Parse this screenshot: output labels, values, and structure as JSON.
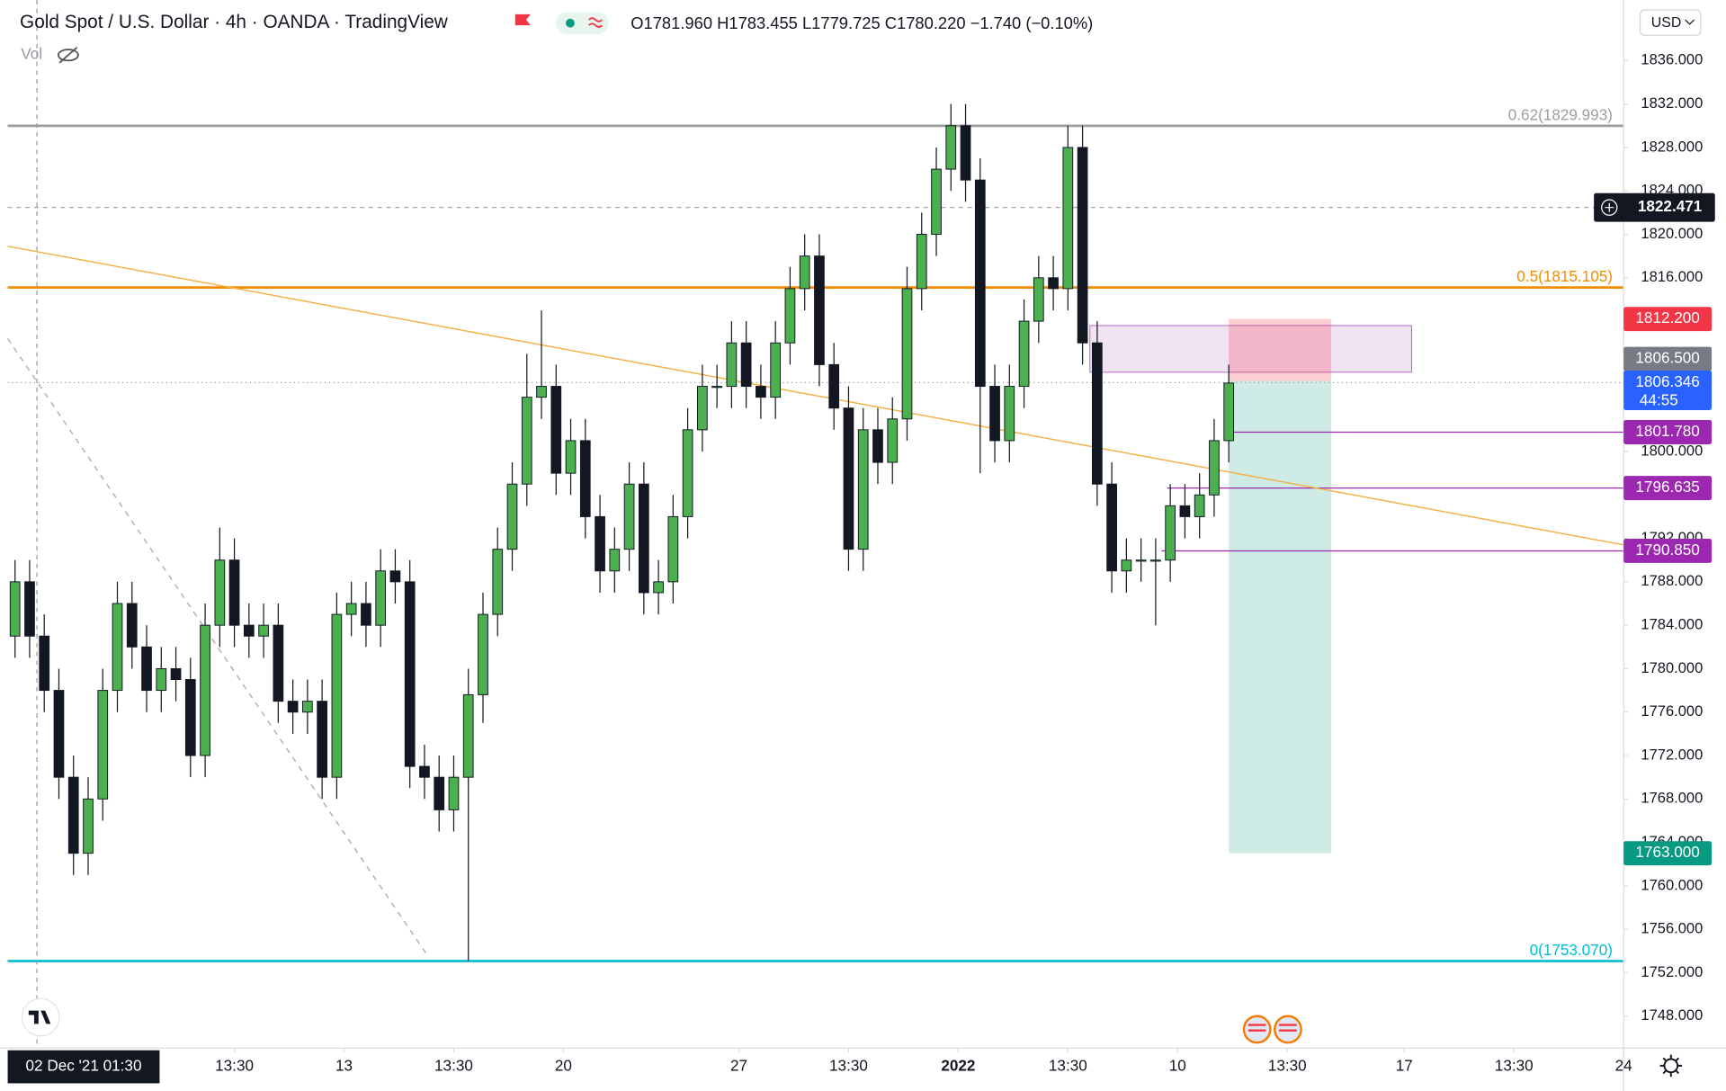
{
  "header": {
    "title": "Gold Spot / U.S. Dollar · 4h · OANDA · TradingView",
    "ohlc": "O1781.960 H1783.455 L1779.725 C1780.220 −1.740 (−0.10%)",
    "volume_label": "Vol",
    "currency": "USD"
  },
  "chart_data": {
    "type": "candlestick",
    "open": [
      1783,
      1788,
      1783,
      1778,
      1770,
      1763,
      1768,
      1778,
      1786,
      1782,
      1778,
      1780,
      1779,
      1772,
      1784,
      1790,
      1784,
      1783,
      1784,
      1777,
      1776,
      1777,
      1770,
      1785,
      1786,
      1784,
      1789,
      1788,
      1771,
      1770,
      1767,
      1770,
      1777.6,
      1785,
      1791,
      1797,
      1805,
      1806,
      1798,
      1801,
      1794,
      1789,
      1791,
      1797,
      1787,
      1788,
      1794,
      1802,
      1806,
      1806,
      1810,
      1806,
      1805,
      1810,
      1815,
      1818,
      1808,
      1804,
      1791,
      1802,
      1799,
      1803,
      1815,
      1820,
      1826,
      1830,
      1825,
      1806,
      1801,
      1806,
      1812,
      1816,
      1815,
      1828,
      1810,
      1797,
      1789,
      1790,
      1790,
      1790,
      1795,
      1794,
      1796,
      1801
    ],
    "high": [
      1790,
      1790,
      1785,
      1780,
      1772,
      1770,
      1780,
      1788,
      1788,
      1784,
      1782,
      1782,
      1781,
      1786,
      1793,
      1792,
      1786,
      1786,
      1786,
      1779,
      1779,
      1779,
      1787,
      1788,
      1788,
      1791,
      1791,
      1790,
      1773,
      1772,
      1772,
      1780,
      1787,
      1793,
      1799,
      1809,
      1813,
      1808,
      1803,
      1803,
      1796,
      1793,
      1799,
      1799,
      1790,
      1796,
      1804,
      1808,
      1808,
      1812,
      1812,
      1808,
      1812,
      1817,
      1820,
      1820,
      1810,
      1806,
      1804,
      1804,
      1805,
      1817,
      1822,
      1828,
      1832,
      1832,
      1827,
      1808,
      1808,
      1814,
      1818,
      1818,
      1830,
      1830,
      1812,
      1799,
      1792,
      1792,
      1792,
      1797,
      1797,
      1798,
      1803,
      1808
    ],
    "low": [
      1781,
      1781,
      1776,
      1768,
      1761,
      1761,
      1766,
      1776,
      1780,
      1776,
      1776,
      1777,
      1770,
      1770,
      1782,
      1782,
      1781,
      1781,
      1775,
      1774,
      1774,
      1768,
      1768,
      1783,
      1782,
      1782,
      1786,
      1769,
      1768,
      1765,
      1765,
      1753.07,
      1775,
      1783,
      1789,
      1795,
      1803,
      1796,
      1796,
      1792,
      1787,
      1787,
      1789,
      1785,
      1785,
      1786,
      1792,
      1800,
      1804,
      1804,
      1804,
      1803,
      1803,
      1808,
      1813,
      1806,
      1802,
      1789,
      1789,
      1797,
      1797,
      1801,
      1813,
      1818,
      1824,
      1823,
      1798,
      1799,
      1799,
      1804,
      1810,
      1813,
      1813,
      1808,
      1795,
      1787,
      1787,
      1788,
      1784,
      1788,
      1792,
      1792,
      1794,
      1799
    ],
    "close": [
      1788,
      1783,
      1778,
      1770,
      1763,
      1768,
      1778,
      1786,
      1782,
      1778,
      1780,
      1779,
      1772,
      1784,
      1790,
      1784,
      1783,
      1784,
      1777,
      1776,
      1777,
      1770,
      1785,
      1786,
      1784,
      1789,
      1788,
      1771,
      1770,
      1767,
      1770,
      1777.6,
      1785,
      1791,
      1797,
      1805,
      1806,
      1798,
      1801,
      1794,
      1789,
      1791,
      1797,
      1787,
      1788,
      1794,
      1802,
      1806,
      1806,
      1810,
      1806,
      1805,
      1810,
      1815,
      1818,
      1808,
      1804,
      1791,
      1802,
      1799,
      1803,
      1815,
      1820,
      1826,
      1830,
      1825,
      1806,
      1801,
      1806,
      1812,
      1816,
      1815,
      1828,
      1810,
      1797,
      1789,
      1790,
      1790,
      1790,
      1795,
      1794,
      1796,
      1801,
      1806.3
    ],
    "colors": {
      "up": "#4caf50",
      "down": "#131722"
    },
    "xlim": [
      -0.5,
      110
    ],
    "ylim": [
      1745.06,
      1841.58
    ],
    "xticks": [
      {
        "value": 15,
        "label": "13:30"
      },
      {
        "value": 22.5,
        "label": "13"
      },
      {
        "value": 30,
        "label": "13:30"
      },
      {
        "value": 37.5,
        "label": "20"
      },
      {
        "value": 49.5,
        "label": "27"
      },
      {
        "value": 57,
        "label": "13:30"
      },
      {
        "value": 64.5,
        "label": "2022"
      },
      {
        "value": 72,
        "label": "13:30"
      },
      {
        "value": 79.5,
        "label": "10"
      },
      {
        "value": 87,
        "label": "13:30"
      },
      {
        "value": 95,
        "label": "17"
      },
      {
        "value": 102.5,
        "label": "13:30"
      },
      {
        "value": 110,
        "label": "24"
      }
    ],
    "yticks": [
      {
        "value": 1748,
        "label": "1748.000"
      },
      {
        "value": 1752,
        "label": "1752.000"
      },
      {
        "value": 1756,
        "label": "1756.000"
      },
      {
        "value": 1760,
        "label": "1760.000"
      },
      {
        "value": 1764,
        "label": "1764.000"
      },
      {
        "value": 1768,
        "label": "1768.000"
      },
      {
        "value": 1772,
        "label": "1772.000"
      },
      {
        "value": 1776,
        "label": "1776.000"
      },
      {
        "value": 1780,
        "label": "1780.000"
      },
      {
        "value": 1784,
        "label": "1784.000"
      },
      {
        "value": 1788,
        "label": "1788.000"
      },
      {
        "value": 1792,
        "label": "1792.000"
      },
      {
        "value": 1800,
        "label": "1800.000"
      },
      {
        "value": 1816,
        "label": "1816.000"
      },
      {
        "value": 1820,
        "label": "1820.000"
      },
      {
        "value": 1824,
        "label": "1824.000"
      },
      {
        "value": 1828,
        "label": "1828.000"
      },
      {
        "value": 1832,
        "label": "1832.000"
      },
      {
        "value": 1836,
        "label": "1836.000"
      }
    ],
    "grid": false,
    "fib_levels": [
      {
        "value": 1829.993,
        "label": "0.62(1829.993)",
        "color": "#9e9e9e"
      },
      {
        "value": 1815.105,
        "label": "0.5(1815.105)",
        "color": "#f28c00"
      },
      {
        "value": 1753.07,
        "label": "0(1753.070)",
        "color": "#00bcd4"
      }
    ],
    "trendlines": [
      {
        "points": [
          [
            -0.5,
            1818.9
          ],
          [
            110,
            1791.4
          ]
        ],
        "color": "#f5b04a",
        "dashed": false
      },
      {
        "points": [
          [
            -0.5,
            1810.4
          ],
          [
            28.3,
            1753.4
          ]
        ],
        "color": "#b0b0b0",
        "dashed": true
      }
    ],
    "zone": {
      "x": [
        73.5,
        95.5
      ],
      "y": [
        1807.3,
        1811.6
      ],
      "color": "#e1bee7"
    },
    "position": {
      "x": [
        83,
        90
      ],
      "entry": 1806.5,
      "stop": 1812.2,
      "target": 1763
    },
    "price_lines": [
      {
        "value": 1801.78,
        "label": "1801.780",
        "from": 83,
        "color": "#9c27b0"
      },
      {
        "value": 1796.635,
        "label": "1796.635",
        "from": 78.8,
        "color": "#9c27b0"
      },
      {
        "value": 1790.85,
        "label": "1790.850",
        "from": 78.4,
        "color": "#9c27b0"
      }
    ],
    "price_badges": [
      {
        "value": 1822.471,
        "label": "1822.471",
        "color": "#131722"
      },
      {
        "value": 1812.2,
        "label": "1812.200",
        "color": "#f23645"
      },
      {
        "value": 1806.5,
        "label": "1806.500",
        "color": "#787b86"
      },
      {
        "value": 1806.346,
        "label": "1806.346",
        "color": "#2962ff",
        "countdown": "44:55"
      },
      {
        "value": 1763,
        "label": "1763.000",
        "color": "#089981"
      }
    ],
    "crosshair": {
      "x": 1.5,
      "x_label": "02 Dec '21 01:30"
    }
  }
}
